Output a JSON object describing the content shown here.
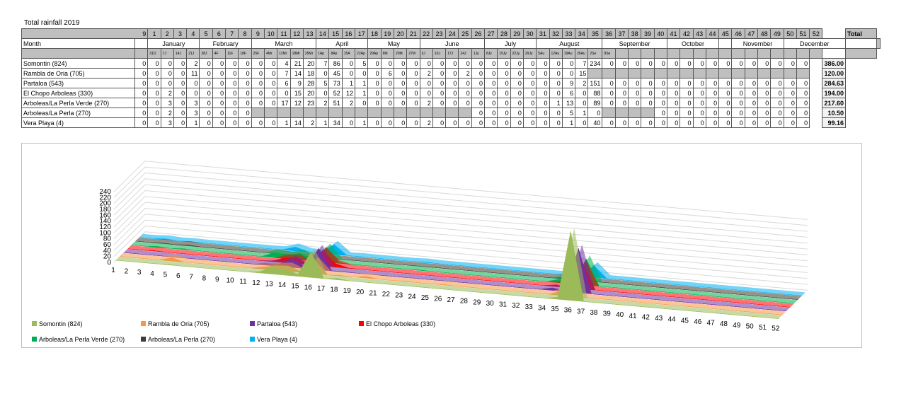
{
  "title": "Total rainfall 2019",
  "month_label": "Month",
  "total_label": "Total",
  "weeks": [
    "9",
    "1",
    "2",
    "3",
    "4",
    "5",
    "6",
    "7",
    "8",
    "9",
    "10",
    "11",
    "12",
    "13",
    "14",
    "15",
    "16",
    "17",
    "18",
    "19",
    "20",
    "21",
    "22",
    "23",
    "24",
    "25",
    "26",
    "27",
    "28",
    "29",
    "30",
    "31",
    "32",
    "33",
    "34",
    "35",
    "36",
    "37",
    "38",
    "39",
    "40",
    "41",
    "42",
    "43",
    "44",
    "45",
    "46",
    "47",
    "48",
    "49",
    "50",
    "51",
    "52"
  ],
  "months": [
    {
      "name": "",
      "span": 1
    },
    {
      "name": "January",
      "span": 4
    },
    {
      "name": "February",
      "span": 4
    },
    {
      "name": "March",
      "span": 5
    },
    {
      "name": "April",
      "span": 4
    },
    {
      "name": "May",
      "span": 4
    },
    {
      "name": "June",
      "span": 5
    },
    {
      "name": "July",
      "span": 4
    },
    {
      "name": "August",
      "span": 5
    },
    {
      "name": "September",
      "span": 5
    },
    {
      "name": "October",
      "span": 4
    },
    {
      "name": "",
      "span": 1
    },
    {
      "name": "November",
      "span": 4
    },
    {
      "name": "December",
      "span": 4
    }
  ],
  "dates": [
    "",
    "31D",
    "7J",
    "14J",
    "21J",
    "28J",
    "4F",
    "11F",
    "18F",
    "25F",
    "4Mr",
    "11Mr",
    "18Mr",
    "25Mr",
    "1Ap",
    "8Ap",
    "15A",
    "22Ap",
    "29Ap",
    "6M",
    "20M",
    "27M",
    "3J",
    "10J",
    "17J",
    "24J",
    "1Jy",
    "8Jy",
    "15Jy",
    "22Jy",
    "29Jy",
    "5Au",
    "12Au",
    "19Au",
    "26Au",
    "2Se",
    "9Se",
    "",
    "",
    "",
    "",
    "",
    "",
    "",
    "",
    "",
    "",
    "",
    "",
    "",
    "",
    "",
    ""
  ],
  "rows": [
    {
      "name": "Somontin (824)",
      "total": "386.00",
      "cells": [
        "0",
        "0",
        "0",
        "0",
        "2",
        "0",
        "0",
        "0",
        "0",
        "0",
        "0",
        "4",
        "21",
        "20",
        "7",
        "86",
        "0",
        "5",
        "0",
        "0",
        "0",
        "0",
        "0",
        "0",
        "0",
        "0",
        "0",
        "0",
        "0",
        "0",
        "0",
        "0",
        "0",
        "0",
        "7",
        "234",
        "0",
        "0",
        "0",
        "0",
        "0",
        "0",
        "0",
        "0",
        "0",
        "0",
        "0",
        "0",
        "0",
        "0",
        "0",
        "0"
      ]
    },
    {
      "name": "Rambla de Oria (705)",
      "total": "120.00",
      "cells": [
        "0",
        "0",
        "0",
        "0",
        "11",
        "0",
        "0",
        "0",
        "0",
        "0",
        "0",
        "7",
        "14",
        "18",
        "0",
        "45",
        "0",
        "0",
        "0",
        "6",
        "0",
        "0",
        "2",
        "0",
        "0",
        "2",
        "0",
        "0",
        "0",
        "0",
        "0",
        "0",
        "0",
        "0",
        "15",
        "",
        "",
        "",
        "",
        "",
        "",
        "",
        "",
        "",
        "",
        "",
        "",
        "",
        "",
        "",
        "",
        ""
      ]
    },
    {
      "name": "Partaloa (543)",
      "total": "284.63",
      "cells": [
        "0",
        "0",
        "0",
        "0",
        "0",
        "0",
        "0",
        "0",
        "0",
        "0",
        "0",
        "6",
        "9",
        "28",
        "5",
        "73",
        "1",
        "1",
        "0",
        "0",
        "0",
        "0",
        "0",
        "0",
        "0",
        "0",
        "0",
        "0",
        "0",
        "0",
        "0",
        "0",
        "0",
        "9",
        "2",
        "151",
        "0",
        "0",
        "0",
        "0",
        "0",
        "0",
        "0",
        "0",
        "0",
        "0",
        "0",
        "0",
        "0",
        "0",
        "0",
        "0"
      ]
    },
    {
      "name": "El Chopo Arboleas (330)",
      "total": "194.00",
      "cells": [
        "0",
        "0",
        "2",
        "0",
        "0",
        "0",
        "0",
        "0",
        "0",
        "0",
        "0",
        "0",
        "15",
        "20",
        "0",
        "52",
        "12",
        "1",
        "0",
        "0",
        "0",
        "0",
        "0",
        "0",
        "0",
        "0",
        "0",
        "0",
        "0",
        "0",
        "0",
        "0",
        "0",
        "6",
        "0",
        "88",
        "0",
        "0",
        "0",
        "0",
        "0",
        "0",
        "0",
        "0",
        "0",
        "0",
        "0",
        "0",
        "0",
        "0",
        "0",
        "0"
      ]
    },
    {
      "name": "Arboleas/La Perla Verde (270)",
      "total": "217.60",
      "cells": [
        "0",
        "0",
        "3",
        "0",
        "3",
        "0",
        "0",
        "0",
        "0",
        "0",
        "0",
        "17",
        "12",
        "23",
        "2",
        "51",
        "2",
        "0",
        "0",
        "0",
        "0",
        "0",
        "2",
        "0",
        "0",
        "0",
        "0",
        "0",
        "0",
        "0",
        "0",
        "0",
        "1",
        "13",
        "0",
        "89",
        "0",
        "0",
        "0",
        "0",
        "0",
        "0",
        "0",
        "0",
        "0",
        "0",
        "0",
        "0",
        "0",
        "0",
        "0",
        "0"
      ]
    },
    {
      "name": "Arboleas/La Perla (270)",
      "total": "10.50",
      "cells": [
        "0",
        "0",
        "2",
        "0",
        "3",
        "0",
        "0",
        "0",
        "0",
        "",
        "",
        "",
        "",
        "",
        "",
        "",
        "",
        "",
        "",
        "",
        "",
        "",
        "",
        "",
        "",
        "",
        "0",
        "0",
        "0",
        "0",
        "0",
        "0",
        "0",
        "5",
        "1",
        "0",
        "",
        "",
        "",
        "",
        "0",
        "0",
        "0",
        "0",
        "0",
        "0",
        "0",
        "0",
        "0",
        "0",
        "0",
        "0"
      ]
    },
    {
      "name": "Vera Playa (4)",
      "total": "99.16",
      "cells": [
        "0",
        "0",
        "3",
        "0",
        "1",
        "0",
        "0",
        "0",
        "0",
        "0",
        "0",
        "1",
        "14",
        "2",
        "1",
        "34",
        "0",
        "1",
        "0",
        "0",
        "0",
        "0",
        "2",
        "0",
        "0",
        "0",
        "0",
        "0",
        "0",
        "0",
        "0",
        "0",
        "0",
        "1",
        "0",
        "40",
        "0",
        "0",
        "0",
        "0",
        "0",
        "0",
        "0",
        "0",
        "0",
        "0",
        "0",
        "0",
        "0",
        "0",
        "0",
        "0"
      ]
    }
  ],
  "chart_data": {
    "type": "area",
    "subtype": "3d-area",
    "title": "",
    "x": [
      "1",
      "2",
      "3",
      "4",
      "5",
      "6",
      "7",
      "8",
      "9",
      "10",
      "11",
      "12",
      "13",
      "14",
      "15",
      "16",
      "17",
      "18",
      "19",
      "20",
      "21",
      "22",
      "23",
      "24",
      "25",
      "26",
      "27",
      "28",
      "29",
      "30",
      "31",
      "32",
      "33",
      "34",
      "35",
      "36",
      "37",
      "38",
      "39",
      "40",
      "41",
      "42",
      "43",
      "44",
      "45",
      "46",
      "47",
      "48",
      "49",
      "50",
      "51",
      "52"
    ],
    "y_ticks": [
      0,
      20,
      40,
      60,
      80,
      100,
      120,
      140,
      160,
      180,
      200,
      220,
      240
    ],
    "ylim": [
      0,
      240
    ],
    "legend_position": "bottom",
    "series": [
      {
        "name": "Somontin (824)",
        "color": "#9bbb59",
        "values": [
          0,
          0,
          0,
          0,
          2,
          0,
          0,
          0,
          0,
          0,
          0,
          4,
          21,
          20,
          7,
          86,
          0,
          5,
          0,
          0,
          0,
          0,
          0,
          0,
          0,
          0,
          0,
          0,
          0,
          0,
          0,
          0,
          0,
          0,
          7,
          234,
          0,
          0,
          0,
          0,
          0,
          0,
          0,
          0,
          0,
          0,
          0,
          0,
          0,
          0,
          0,
          0
        ]
      },
      {
        "name": "Rambla de Oria (705)",
        "color": "#f79646",
        "values": [
          0,
          0,
          0,
          0,
          11,
          0,
          0,
          0,
          0,
          0,
          0,
          7,
          14,
          18,
          0,
          45,
          0,
          0,
          0,
          6,
          0,
          0,
          2,
          0,
          0,
          2,
          0,
          0,
          0,
          0,
          0,
          0,
          0,
          0,
          15,
          0,
          0,
          0,
          0,
          0,
          0,
          0,
          0,
          0,
          0,
          0,
          0,
          0,
          0,
          0,
          0,
          0
        ]
      },
      {
        "name": "Partaloa (543)",
        "color": "#7030a0",
        "values": [
          0,
          0,
          0,
          0,
          0,
          0,
          0,
          0,
          0,
          0,
          0,
          6,
          9,
          28,
          5,
          73,
          1,
          1,
          0,
          0,
          0,
          0,
          0,
          0,
          0,
          0,
          0,
          0,
          0,
          0,
          0,
          0,
          0,
          9,
          2,
          151,
          0,
          0,
          0,
          0,
          0,
          0,
          0,
          0,
          0,
          0,
          0,
          0,
          0,
          0,
          0,
          0
        ]
      },
      {
        "name": "El Chopo Arboleas (330)",
        "color": "#ff0000",
        "values": [
          0,
          0,
          2,
          0,
          0,
          0,
          0,
          0,
          0,
          0,
          0,
          0,
          15,
          20,
          0,
          52,
          12,
          1,
          0,
          0,
          0,
          0,
          0,
          0,
          0,
          0,
          0,
          0,
          0,
          0,
          0,
          0,
          0,
          6,
          0,
          88,
          0,
          0,
          0,
          0,
          0,
          0,
          0,
          0,
          0,
          0,
          0,
          0,
          0,
          0,
          0,
          0
        ]
      },
      {
        "name": "Arboleas/La Perla Verde (270)",
        "color": "#00b050",
        "values": [
          0,
          0,
          3,
          0,
          3,
          0,
          0,
          0,
          0,
          0,
          0,
          17,
          12,
          23,
          2,
          51,
          2,
          0,
          0,
          0,
          0,
          0,
          2,
          0,
          0,
          0,
          0,
          0,
          0,
          0,
          0,
          0,
          1,
          13,
          0,
          89,
          0,
          0,
          0,
          0,
          0,
          0,
          0,
          0,
          0,
          0,
          0,
          0,
          0,
          0,
          0,
          0
        ]
      },
      {
        "name": "Arboleas/La Perla (270)",
        "color": "#403a2f",
        "values": [
          0,
          0,
          2,
          0,
          3,
          0,
          0,
          0,
          0,
          0,
          0,
          0,
          0,
          0,
          0,
          0,
          0,
          0,
          0,
          0,
          0,
          0,
          0,
          0,
          0,
          0,
          0,
          0,
          0,
          0,
          0,
          0,
          0,
          5,
          1,
          0,
          0,
          0,
          0,
          0,
          0,
          0,
          0,
          0,
          0,
          0,
          0,
          0,
          0,
          0,
          0,
          0
        ]
      },
      {
        "name": "Vera Playa (4)",
        "color": "#00b0f0",
        "values": [
          0,
          0,
          3,
          0,
          1,
          0,
          0,
          0,
          0,
          0,
          0,
          1,
          14,
          2,
          1,
          34,
          0,
          1,
          0,
          0,
          0,
          0,
          2,
          0,
          0,
          0,
          0,
          0,
          0,
          0,
          0,
          0,
          0,
          1,
          0,
          40,
          0,
          0,
          0,
          0,
          0,
          0,
          0,
          0,
          0,
          0,
          0,
          0,
          0,
          0,
          0,
          0
        ]
      }
    ]
  }
}
